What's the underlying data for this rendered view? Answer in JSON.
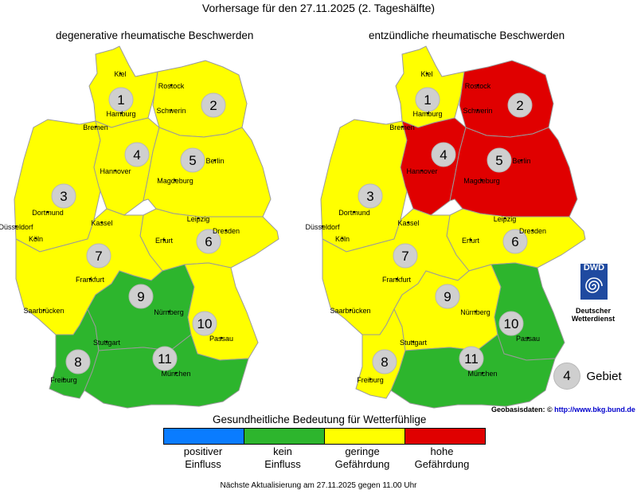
{
  "title": "Vorhersage für den 27.11.2025 (2. Tageshälfte)",
  "maps": [
    {
      "title": "degenerative rheumatische Beschwerden",
      "regions": [
        {
          "id": 1,
          "level": "geringe Gefährdung"
        },
        {
          "id": 2,
          "level": "geringe Gefährdung"
        },
        {
          "id": 3,
          "level": "geringe Gefährdung"
        },
        {
          "id": 4,
          "level": "geringe Gefährdung"
        },
        {
          "id": 5,
          "level": "geringe Gefährdung"
        },
        {
          "id": 6,
          "level": "geringe Gefährdung"
        },
        {
          "id": 7,
          "level": "geringe Gefährdung"
        },
        {
          "id": 8,
          "level": "kein Einfluss"
        },
        {
          "id": 9,
          "level": "kein Einfluss"
        },
        {
          "id": 10,
          "level": "geringe Gefährdung"
        },
        {
          "id": 11,
          "level": "kein Einfluss"
        }
      ]
    },
    {
      "title": "entzündliche rheumatische Beschwerden",
      "regions": [
        {
          "id": 1,
          "level": "geringe Gefährdung"
        },
        {
          "id": 2,
          "level": "hohe Gefährdung"
        },
        {
          "id": 3,
          "level": "geringe Gefährdung"
        },
        {
          "id": 4,
          "level": "hohe Gefährdung"
        },
        {
          "id": 5,
          "level": "hohe Gefährdung"
        },
        {
          "id": 6,
          "level": "geringe Gefährdung"
        },
        {
          "id": 7,
          "level": "geringe Gefährdung"
        },
        {
          "id": 8,
          "level": "geringe Gefährdung"
        },
        {
          "id": 9,
          "level": "geringe Gefährdung"
        },
        {
          "id": 10,
          "level": "kein Einfluss"
        },
        {
          "id": 11,
          "level": "kein Einfluss"
        }
      ]
    }
  ],
  "cities": [
    "Kiel",
    "Rostock",
    "Hamburg",
    "Schwerin",
    "Bremen",
    "Hannover",
    "Berlin",
    "Magdeburg",
    "Dortmund",
    "Düsseldorf",
    "Köln",
    "Kassel",
    "Leipzig",
    "Dresden",
    "Erfurt",
    "Frankfurt",
    "Nürnberg",
    "Saarbrücken",
    "Stuttgart",
    "Passau",
    "Freiburg",
    "München"
  ],
  "legend": {
    "title": "Gesundheitliche Bedeutung für Wetterfühlige",
    "items": [
      {
        "label_line1": "positiver",
        "label_line2": "Einfluss",
        "color": "#0a7cff"
      },
      {
        "label_line1": "kein",
        "label_line2": "Einfluss",
        "color": "#2db52d"
      },
      {
        "label_line1": "geringe",
        "label_line2": "Gefährdung",
        "color": "#ffff00"
      },
      {
        "label_line1": "hohe",
        "label_line2": "Gefährdung",
        "color": "#e00000"
      }
    ]
  },
  "area_key": {
    "number": "4",
    "label": "Gebiet"
  },
  "source": {
    "label": "Geobasisdaten: ©",
    "link": "http://www.bkg.bund.de"
  },
  "logo": {
    "text": "DWD",
    "name_line1": "Deutscher",
    "name_line2": "Wetterdienst"
  },
  "footer": "Nächste Aktualisierung am 27.11.2025 gegen 11.00 Uhr"
}
